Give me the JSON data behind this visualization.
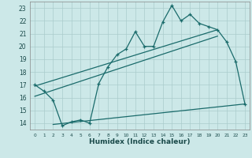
{
  "xlabel": "Humidex (Indice chaleur)",
  "bg_color": "#cce8e8",
  "grid_color": "#aacccc",
  "line_color": "#1a6b6b",
  "xlim": [
    -0.5,
    23.5
  ],
  "ylim": [
    13.5,
    23.5
  ],
  "yticks": [
    14,
    15,
    16,
    17,
    18,
    19,
    20,
    21,
    22,
    23
  ],
  "xticks": [
    0,
    1,
    2,
    3,
    4,
    5,
    6,
    7,
    8,
    9,
    10,
    11,
    12,
    13,
    14,
    15,
    16,
    17,
    18,
    19,
    20,
    21,
    22,
    23
  ],
  "main_x": [
    0,
    1,
    2,
    3,
    4,
    5,
    6,
    7,
    8,
    9,
    10,
    11,
    12,
    13,
    14,
    15,
    16,
    17,
    18,
    19,
    20,
    21,
    22,
    23
  ],
  "main_y": [
    17.0,
    16.5,
    15.8,
    13.8,
    14.1,
    14.25,
    14.0,
    17.1,
    18.4,
    19.35,
    19.8,
    21.15,
    20.0,
    20.0,
    21.9,
    23.2,
    22.0,
    22.5,
    21.8,
    21.55,
    21.3,
    20.35,
    18.8,
    15.5
  ],
  "line2_x": [
    0,
    20
  ],
  "line2_y": [
    16.9,
    21.3
  ],
  "line3_x": [
    0,
    20
  ],
  "line3_y": [
    16.1,
    20.8
  ],
  "line4_x": [
    2,
    23
  ],
  "line4_y": [
    13.9,
    15.5
  ]
}
